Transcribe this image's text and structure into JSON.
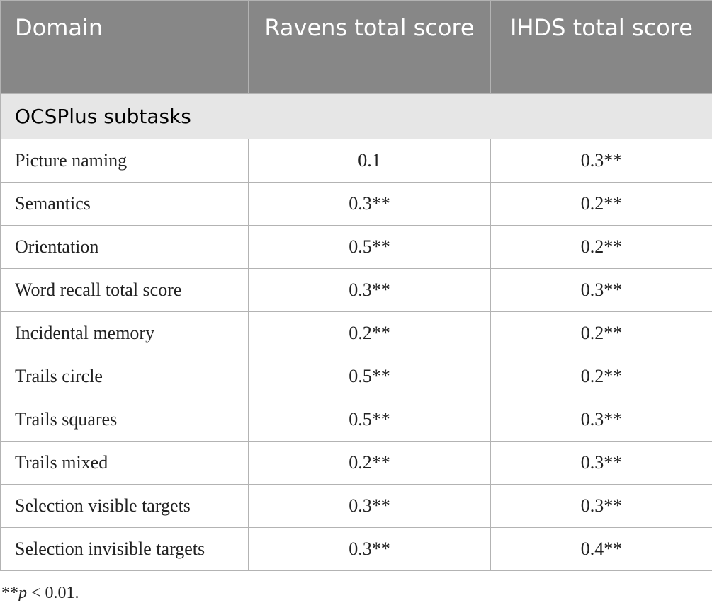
{
  "table": {
    "header": [
      "Domain",
      "Ravens total score",
      "IHDS total score"
    ],
    "section": "OCSPlus subtasks",
    "rows": [
      [
        "Picture naming",
        "0.1",
        "0.3**"
      ],
      [
        "Semantics",
        "0.3**",
        "0.2**"
      ],
      [
        "Orientation",
        "0.5**",
        "0.2**"
      ],
      [
        "Word recall total score",
        "0.3**",
        "0.3**"
      ],
      [
        "Incidental memory",
        "0.2**",
        "0.2**"
      ],
      [
        "Trails circle",
        "0.5**",
        "0.2**"
      ],
      [
        "Trails squares",
        "0.5**",
        "0.3**"
      ],
      [
        "Trails mixed",
        "0.2**",
        "0.3**"
      ],
      [
        "Selection visible targets",
        "0.3**",
        "0.3**"
      ],
      [
        "Selection invisible targets",
        "0.3**",
        "0.4**"
      ]
    ]
  },
  "footnote": {
    "stars": "**",
    "italic": "p",
    "text": " < 0.01."
  }
}
